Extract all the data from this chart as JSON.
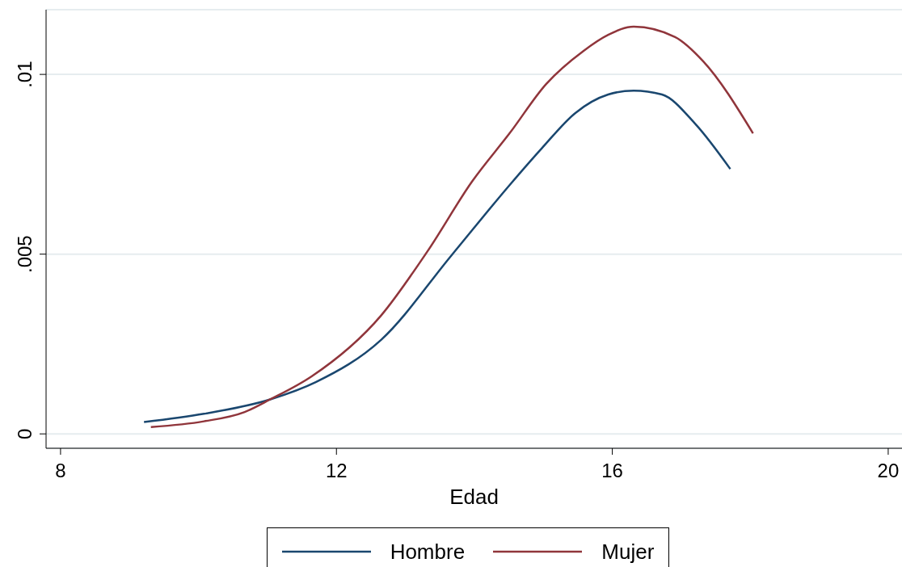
{
  "chart_data": {
    "type": "line",
    "xlabel": "Edad",
    "xlim": [
      7.79,
      20.2
    ],
    "xticks": [
      8,
      12,
      16,
      20
    ],
    "ylim": [
      -0.0004,
      0.0118
    ],
    "yticks": [
      {
        "value": 0,
        "label": "0"
      },
      {
        "value": 0.005,
        "label": ".005"
      },
      {
        "value": 0.01,
        "label": ".01"
      }
    ],
    "grid": "y",
    "legend": "bottom",
    "marker": "none",
    "line_style": "solid",
    "series": [
      {
        "name": "Hombre",
        "color": "#1a476f",
        "x": [
          9.21,
          10.08,
          11.04,
          11.7,
          12.65,
          13.67,
          14.51,
          14.98,
          15.46,
          15.94,
          16.31,
          16.72,
          17.2,
          17.71
        ],
        "values": [
          0.00033,
          0.00056,
          0.00096,
          0.00144,
          0.00262,
          0.00497,
          0.00692,
          0.00795,
          0.00892,
          0.00944,
          0.00955,
          0.00944,
          0.00863,
          0.00737
        ]
      },
      {
        "name": "Mujer",
        "color": "#90353b",
        "x": [
          9.31,
          10.08,
          10.67,
          11.04,
          11.64,
          12.65,
          13.32,
          13.97,
          14.51,
          15.04,
          15.58,
          15.94,
          16.31,
          16.91,
          17.32,
          18.04
        ],
        "values": [
          0.00019,
          0.00035,
          0.00061,
          0.00096,
          0.0016,
          0.0033,
          0.00508,
          0.00703,
          0.00836,
          0.00973,
          0.01065,
          0.0111,
          0.01133,
          0.01104,
          0.01036,
          0.00836
        ]
      }
    ]
  }
}
